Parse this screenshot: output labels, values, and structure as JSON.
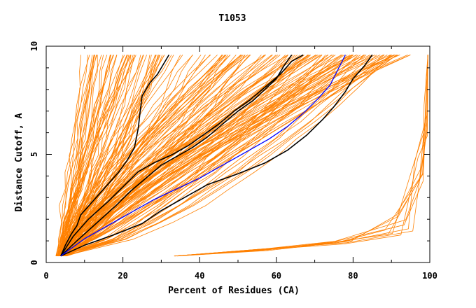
{
  "chart_data": {
    "type": "line",
    "title": "T1053",
    "xlabel": "Percent of Residues (CA)",
    "ylabel": "Distance Cutoff, A",
    "xlim": [
      0,
      100
    ],
    "ylim": [
      0,
      10
    ],
    "x_ticks": [
      "0",
      "20",
      "40",
      "60",
      "80",
      "100"
    ],
    "y_ticks": [
      "0",
      "5",
      "10"
    ],
    "colors": {
      "background_models": "#ff8000",
      "highlight": "#000000",
      "blue": "#0000ff",
      "frame": "#000000"
    },
    "highlight_series": [
      {
        "x": [
          3.8,
          5,
          6.5,
          8,
          9,
          10.5,
          13,
          16,
          19,
          21,
          23,
          24,
          24.5,
          25,
          27,
          29,
          31,
          32
        ],
        "y": [
          0.3,
          0.8,
          1.3,
          1.7,
          2.2,
          2.5,
          3.0,
          3.6,
          4.2,
          4.7,
          5.3,
          6.2,
          7.0,
          7.7,
          8.3,
          8.7,
          9.3,
          9.6
        ]
      },
      {
        "x": [
          3.8,
          7,
          11,
          16,
          20,
          24,
          28,
          33,
          37,
          41,
          45,
          49,
          53,
          57,
          61,
          64,
          67
        ],
        "y": [
          0.3,
          1.2,
          2.0,
          2.8,
          3.5,
          4.2,
          4.6,
          5.0,
          5.4,
          5.9,
          6.4,
          7.0,
          7.5,
          8.1,
          8.7,
          9.3,
          9.6
        ]
      },
      {
        "x": [
          3.8,
          8,
          13,
          18,
          22,
          26,
          30,
          34,
          38,
          42,
          46,
          50,
          54,
          57,
          60,
          62,
          64
        ],
        "y": [
          0.3,
          1.0,
          1.8,
          2.6,
          3.3,
          3.9,
          4.5,
          4.9,
          5.3,
          5.8,
          6.4,
          7.0,
          7.5,
          8.0,
          8.5,
          9.1,
          9.6
        ]
      },
      {
        "x": [
          3.8,
          10,
          18,
          25,
          30,
          36,
          42,
          50,
          57,
          63,
          68,
          72,
          75,
          78,
          80,
          83,
          85
        ],
        "y": [
          0.3,
          0.8,
          1.3,
          1.8,
          2.4,
          3.0,
          3.6,
          4.1,
          4.6,
          5.2,
          5.9,
          6.6,
          7.2,
          7.9,
          8.5,
          9.1,
          9.6
        ]
      }
    ],
    "blue_series": {
      "x": [
        3.8,
        10,
        16,
        22,
        28,
        34,
        40,
        46,
        52,
        58,
        63,
        67,
        71,
        74,
        76,
        78
      ],
      "y": [
        0.3,
        1.1,
        1.7,
        2.3,
        2.9,
        3.4,
        3.9,
        4.5,
        5.1,
        5.7,
        6.3,
        6.9,
        7.6,
        8.2,
        8.9,
        9.6
      ]
    },
    "outlier_group": {
      "count": 10,
      "x_start": 33,
      "y_start": 0.3,
      "x_knee": [
        88,
        97
      ],
      "y_knee": [
        1.2,
        2.2
      ],
      "x_end": 99.5,
      "y_end": 9.6
    },
    "background_fan": {
      "count": 170,
      "x_start_range": [
        2.5,
        5.5
      ],
      "y_start": 0.3,
      "x_end_range": [
        9,
        95
      ],
      "y_end": 9.6
    }
  }
}
